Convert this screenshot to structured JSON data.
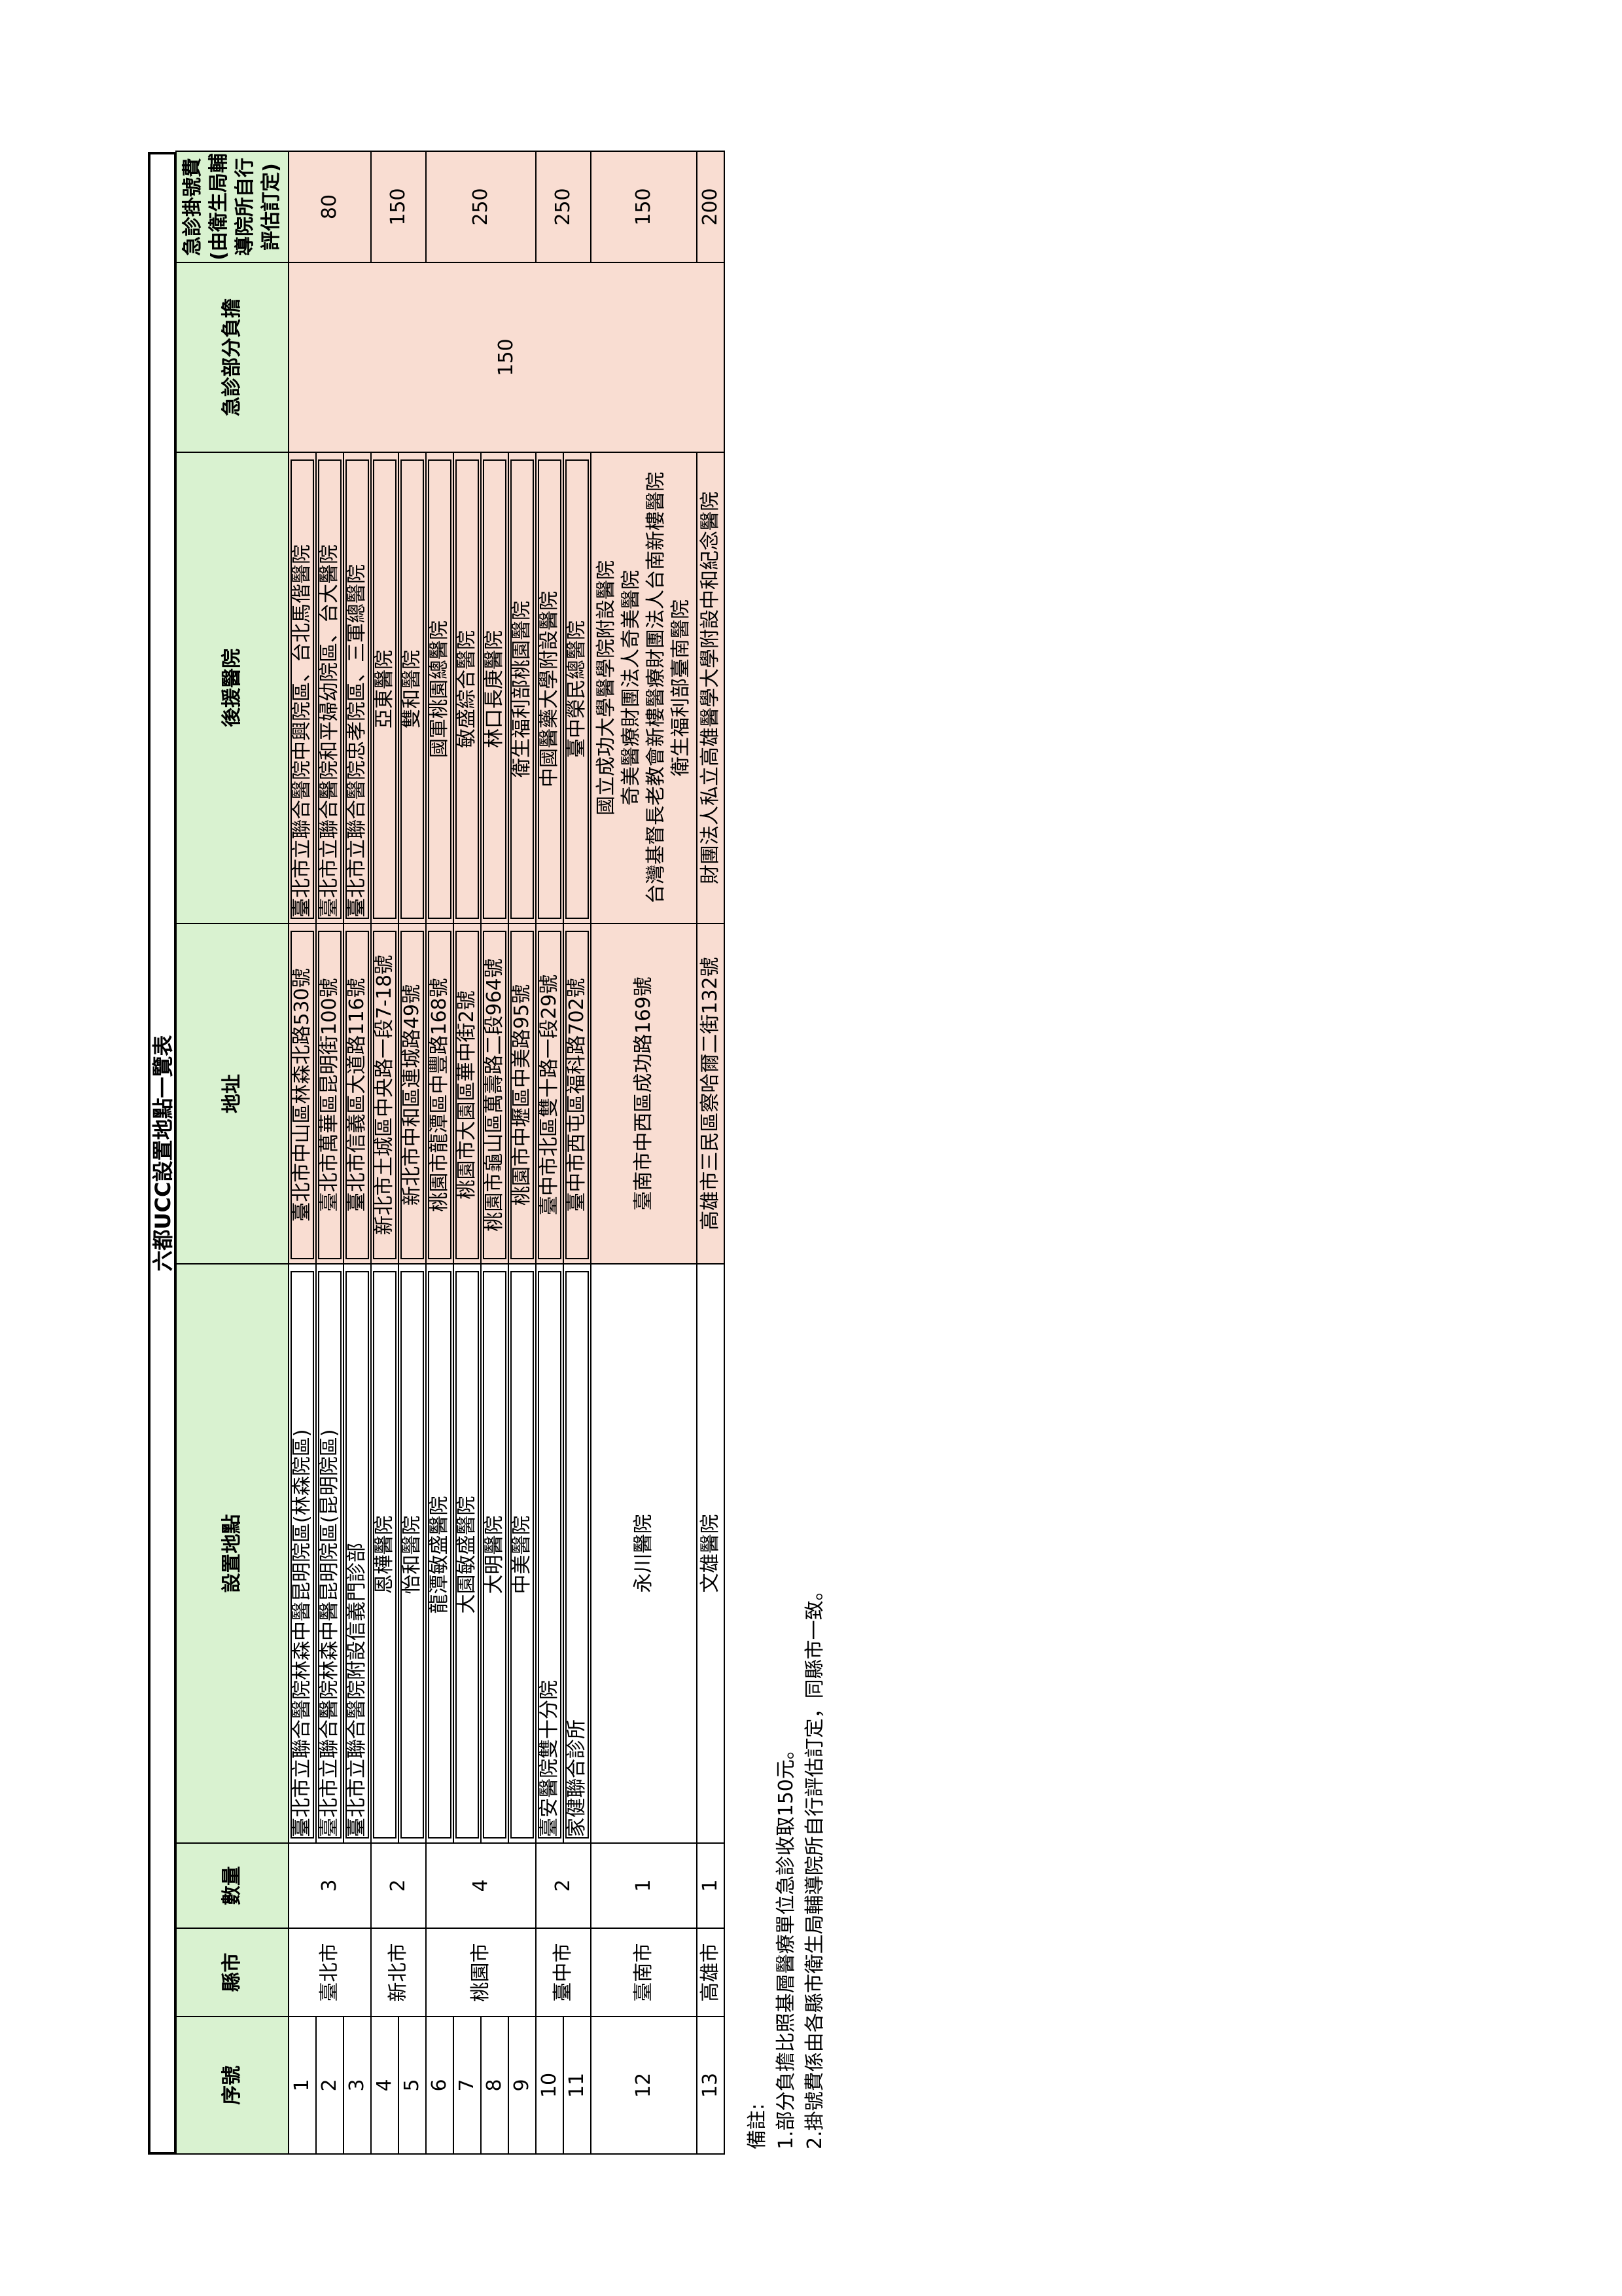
{
  "title": "六都UCC設置地點一覽表",
  "headers": {
    "seq": "序號",
    "county": "縣市",
    "count": "數量",
    "location": "設置地點",
    "address": "地址",
    "backup": "後援醫院",
    "share": "急診部分負擔",
    "fee": "急診掛號費\n(由衛生局輔導院所自行評估訂定)"
  },
  "rows": [
    {
      "seq": "1",
      "location": "臺北市立聯合醫院林森中醫昆明院區(林森院區)",
      "address": "臺北市中山區林森北路530號",
      "backup": "臺北市立聯合醫院中興院區、台北馬偕醫院"
    },
    {
      "seq": "2",
      "location": "臺北市立聯合醫院林森中醫昆明院區(昆明院區)",
      "address": "臺北市萬華區昆明街100號",
      "backup": "臺北市立聯合醫院和平婦幼院區、台大醫院"
    },
    {
      "seq": "3",
      "location": "臺北市立聯合醫院附設信義門診部",
      "address": "臺北市信義區大道路116號",
      "backup": "臺北市立聯合醫院忠孝院區、三軍總醫院"
    },
    {
      "seq": "4",
      "location": "恩樺醫院",
      "address": "新北市土城區中央路一段7-18號",
      "backup": "亞東醫院"
    },
    {
      "seq": "5",
      "location": "怡和醫院",
      "address": "新北市中和區連城路49號",
      "backup": "雙和醫院"
    },
    {
      "seq": "6",
      "location": "龍潭敏盛醫院",
      "address": "桃園市龍潭區中豐路168號",
      "backup": "國軍桃園總醫院"
    },
    {
      "seq": "7",
      "location": "大園敏盛醫院",
      "address": "桃園市大園區華中街2號",
      "backup": "敏盛綜合醫院"
    },
    {
      "seq": "8",
      "location": "大明醫院",
      "address": "桃園市龜山區萬壽路二段964號",
      "backup": "林口長庚醫院"
    },
    {
      "seq": "9",
      "location": "中美醫院",
      "address": "桃園市中壢區中美路95號",
      "backup": "衛生福利部桃園醫院"
    },
    {
      "seq": "10",
      "location": "臺安醫院雙十分院",
      "address": "臺中市北區雙十路一段29號",
      "backup": "中國醫藥大學附設醫院"
    },
    {
      "seq": "11",
      "location": "家健聯合診所",
      "address": "臺中市西屯區福科路702號",
      "backup": "臺中榮民總醫院"
    },
    {
      "seq": "12",
      "location": "永川醫院",
      "address": "臺南市中西區成功路169號",
      "backup": [
        "國立成功大學醫學院附設醫院",
        "奇美醫療財團法人奇美醫院",
        "台灣基督長老教會新樓醫療財團法人台南新樓醫院",
        "衛生福利部臺南醫院"
      ]
    },
    {
      "seq": "13",
      "location": "文雄醫院",
      "address": "高雄市三民區察哈爾二街132號",
      "backup": "財團法人私立高雄醫學大學附設中和紀念醫院"
    }
  ],
  "groups": [
    {
      "county": "臺北市",
      "count": "3",
      "fee": "80"
    },
    {
      "county": "新北市",
      "count": "2",
      "fee": "150"
    },
    {
      "county": "桃園市",
      "count": "4",
      "fee": "250"
    },
    {
      "county": "臺中市",
      "count": "2",
      "fee": "250"
    },
    {
      "county": "臺南市",
      "count": "1",
      "fee": "150"
    },
    {
      "county": "高雄市",
      "count": "1",
      "fee": "200"
    }
  ],
  "share_value": "150",
  "notes": {
    "label": "備註:",
    "items": [
      "1.部分負擔比照基層醫療單位急診收取150元。",
      "2.掛號費係由各縣市衛生局輔導院所自行評估訂定，同縣市一致。"
    ]
  },
  "colors": {
    "header_green": "#d9f2d0",
    "cell_pink": "#f9ddd2"
  }
}
